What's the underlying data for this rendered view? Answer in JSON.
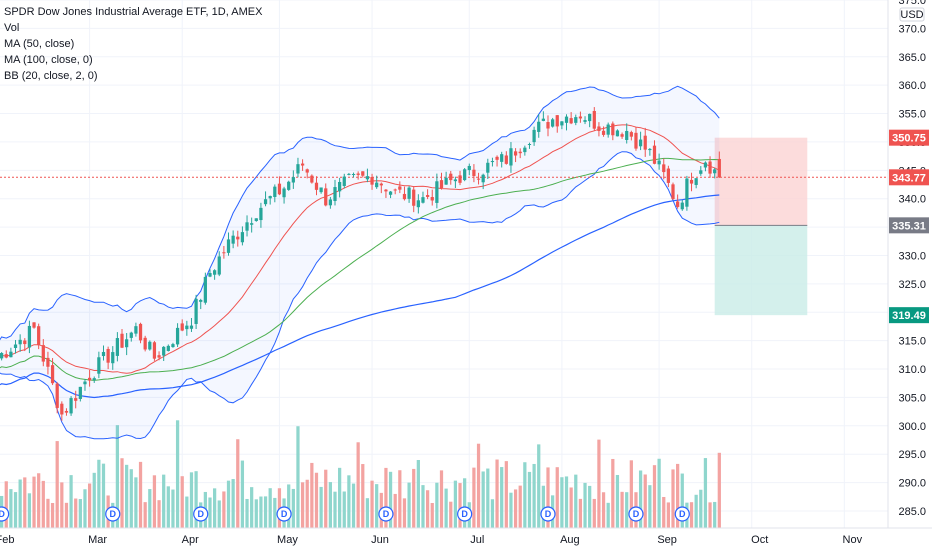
{
  "header": {
    "title": "SPDR Dow Jones Industrial Average ETF, 1D, AMEX",
    "indicators": [
      "Vol",
      "MA (50, close)",
      "MA (100, close, 0)",
      "BB (20, close, 2, 0)"
    ]
  },
  "colors": {
    "up": "#26a69a",
    "down": "#ef5350",
    "vol_up": "#8fd6cd",
    "vol_down": "#f3a3a1",
    "ma50": "#4caf50",
    "ma100": "#2962ff",
    "bb_basis": "#ef5350",
    "bb_band": "#2962ff",
    "stop_zone": "#fbd3d3",
    "target_zone": "#c9ece7",
    "grid": "#f0f3fa"
  },
  "chart_data": {
    "type": "candlestick",
    "y_axis": {
      "currency": "USD",
      "ticks": [
        285,
        290,
        295,
        300,
        305,
        310,
        315,
        320,
        325,
        330,
        335,
        340,
        345,
        350,
        355,
        360,
        365,
        370,
        375
      ],
      "range": [
        282,
        375
      ]
    },
    "x_axis": {
      "months": [
        "Feb",
        "Mar",
        "Apr",
        "May",
        "Jun",
        "Jul",
        "Aug",
        "Sep",
        "Oct",
        "Nov"
      ],
      "month_days": [
        0,
        20,
        40,
        61,
        81,
        102,
        122,
        143,
        163,
        183
      ],
      "total_days": 192
    },
    "price_badges": [
      {
        "value": "350.75",
        "kind": "stop"
      },
      {
        "value": "343.77",
        "kind": "last"
      },
      {
        "value": "335.31",
        "kind": "entry"
      },
      {
        "value": "319.49",
        "kind": "target"
      }
    ],
    "position": {
      "entry": 335.31,
      "stop": 350.75,
      "target": 319.49,
      "start_day": 155,
      "end_day": 175
    },
    "last_price": 343.77,
    "dividend_marker": "D",
    "dividend_days": [
      1,
      25,
      44,
      62,
      84,
      101,
      119,
      138,
      148
    ],
    "key_closes": [
      [
        0,
        312
      ],
      [
        8,
        317
      ],
      [
        14,
        302
      ],
      [
        20,
        309
      ],
      [
        26,
        314
      ],
      [
        30,
        317
      ],
      [
        34,
        312
      ],
      [
        42,
        319
      ],
      [
        46,
        327
      ],
      [
        50,
        332
      ],
      [
        56,
        338
      ],
      [
        62,
        342
      ],
      [
        66,
        346
      ],
      [
        71,
        340
      ],
      [
        76,
        343
      ],
      [
        81,
        344
      ],
      [
        86,
        341
      ],
      [
        92,
        340
      ],
      [
        96,
        342
      ],
      [
        100,
        344
      ],
      [
        104,
        345
      ],
      [
        110,
        347
      ],
      [
        116,
        352
      ],
      [
        120,
        354
      ],
      [
        126,
        355
      ],
      [
        130,
        353
      ],
      [
        136,
        352
      ],
      [
        141,
        348
      ],
      [
        144,
        344
      ],
      [
        147,
        339
      ],
      [
        150,
        344
      ],
      [
        153,
        347
      ],
      [
        156,
        343.77
      ]
    ]
  }
}
